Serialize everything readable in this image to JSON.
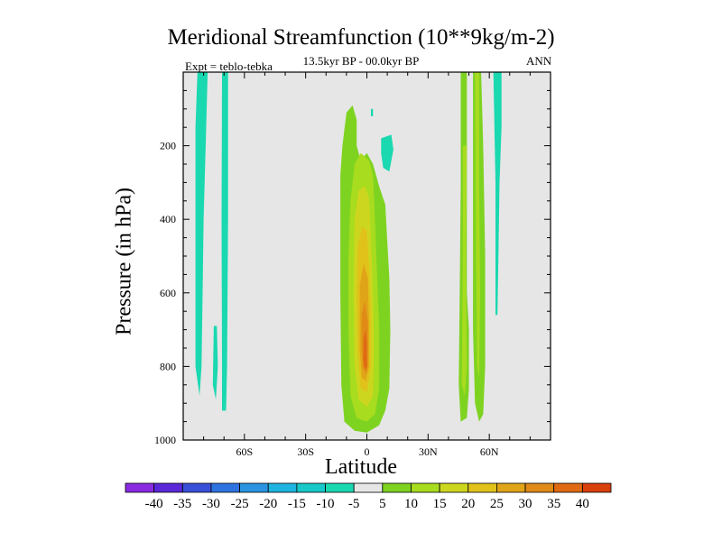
{
  "chart_data": {
    "type": "heatmap",
    "title": "Meridional Streamfunction (10**9kg/m-2)",
    "subtitle": "13.5kyr BP - 00.0kyr BP",
    "left_note": "Expt = teblo-tebka",
    "right_note": "ANN",
    "xlabel": "Latitude",
    "ylabel": "Pressure (in hPa)",
    "x_range": [
      -90,
      90
    ],
    "y_range": [
      0,
      1000
    ],
    "y_reversed": true,
    "x_ticks": [
      {
        "value": -60,
        "label": "60S"
      },
      {
        "value": -30,
        "label": "30S"
      },
      {
        "value": 0,
        "label": "0"
      },
      {
        "value": 30,
        "label": "30N"
      },
      {
        "value": 60,
        "label": "60N"
      }
    ],
    "y_ticks": [
      {
        "value": 200,
        "label": "200"
      },
      {
        "value": 400,
        "label": "400"
      },
      {
        "value": 600,
        "label": "600"
      },
      {
        "value": 800,
        "label": "800"
      },
      {
        "value": 1000,
        "label": "1000"
      }
    ],
    "colorbar": {
      "levels": [
        "-40",
        "-35",
        "-30",
        "-25",
        "-20",
        "-15",
        "-10",
        "-5",
        "5",
        "10",
        "15",
        "20",
        "25",
        "30",
        "35",
        "40"
      ],
      "colors": [
        "#8a2be2",
        "#5a28d8",
        "#3a4fd8",
        "#2e74e0",
        "#2a94e0",
        "#1fb5e0",
        "#18c8c8",
        "#1ad8b0",
        "#e6e6e6",
        "#7ed321",
        "#a8dc1e",
        "#cdd61e",
        "#e0c21a",
        "#e0a418",
        "#e08a18",
        "#e06a14",
        "#d8400c"
      ],
      "background_color": "#e6e6e6"
    },
    "regions": [
      {
        "level": "-10",
        "color": "#1ad8b0",
        "points": [
          [
            -83,
            0
          ],
          [
            -78,
            0
          ],
          [
            -79,
            200
          ],
          [
            -80,
            400
          ],
          [
            -80.5,
            600
          ],
          [
            -81,
            800
          ],
          [
            -82,
            880
          ],
          [
            -84,
            800
          ],
          [
            -84,
            400
          ],
          [
            -84,
            150
          ]
        ]
      },
      {
        "level": "-10",
        "color": "#1ad8b0",
        "points": [
          [
            -71,
            0
          ],
          [
            -68,
            0
          ],
          [
            -68,
            400
          ],
          [
            -68.5,
            800
          ],
          [
            -69,
            920
          ],
          [
            -71,
            920
          ],
          [
            -71,
            800
          ],
          [
            -71.2,
            400
          ]
        ]
      },
      {
        "level": "-10",
        "color": "#1ad8b0",
        "points": [
          [
            -75,
            690
          ],
          [
            -73.5,
            690
          ],
          [
            -73,
            800
          ],
          [
            -74,
            890
          ],
          [
            -75.5,
            850
          ]
        ]
      },
      {
        "level": "-10",
        "color": "#1ad8b0",
        "points": [
          [
            7,
            180
          ],
          [
            12,
            170
          ],
          [
            13,
            210
          ],
          [
            11,
            270
          ],
          [
            8,
            260
          ],
          [
            7,
            220
          ]
        ]
      },
      {
        "level": "-10",
        "color": "#1ad8b0",
        "points": [
          [
            2,
            100
          ],
          [
            3,
            100
          ],
          [
            3,
            120
          ],
          [
            2,
            120
          ]
        ]
      },
      {
        "level": "-10",
        "color": "#1ad8b0",
        "points": [
          [
            62,
            0
          ],
          [
            66,
            0
          ],
          [
            66,
            150
          ],
          [
            65,
            300
          ],
          [
            64.5,
            500
          ],
          [
            64,
            660
          ],
          [
            63,
            660
          ],
          [
            63,
            300
          ]
        ]
      },
      {
        "level": "5",
        "color": "#7ed321",
        "points": [
          [
            -12,
            200
          ],
          [
            -10,
            110
          ],
          [
            -7,
            90
          ],
          [
            -5,
            130
          ],
          [
            -5,
            200
          ],
          [
            -3,
            240
          ],
          [
            0,
            220
          ],
          [
            3,
            250
          ],
          [
            6,
            310
          ],
          [
            9,
            360
          ],
          [
            10,
            460
          ],
          [
            11,
            560
          ],
          [
            11.5,
            700
          ],
          [
            11,
            860
          ],
          [
            9,
            920
          ],
          [
            6,
            960
          ],
          [
            0,
            980
          ],
          [
            -6,
            975
          ],
          [
            -11,
            950
          ],
          [
            -12.5,
            850
          ],
          [
            -13,
            600
          ],
          [
            -13,
            400
          ],
          [
            -13,
            280
          ]
        ]
      },
      {
        "level": "5",
        "color": "#7ed321",
        "points": [
          [
            46,
            0
          ],
          [
            49,
            0
          ],
          [
            49,
            300
          ],
          [
            49,
            600
          ],
          [
            50,
            700
          ],
          [
            50,
            860
          ],
          [
            49,
            940
          ],
          [
            46,
            950
          ],
          [
            45,
            850
          ],
          [
            45.5,
            600
          ],
          [
            46,
            300
          ]
        ]
      },
      {
        "level": "5",
        "color": "#7ed321",
        "points": [
          [
            52,
            0
          ],
          [
            56,
            0
          ],
          [
            57,
            200
          ],
          [
            58,
            500
          ],
          [
            58,
            800
          ],
          [
            57,
            930
          ],
          [
            55,
            950
          ],
          [
            53,
            900
          ],
          [
            52,
            700
          ],
          [
            52,
            400
          ]
        ]
      },
      {
        "level": "10",
        "color": "#a8dc1e",
        "points": [
          [
            -8,
            350
          ],
          [
            -6,
            250
          ],
          [
            -3,
            220
          ],
          [
            1,
            240
          ],
          [
            3,
            280
          ],
          [
            4,
            400
          ],
          [
            5,
            550
          ],
          [
            6,
            700
          ],
          [
            6,
            860
          ],
          [
            4,
            930
          ],
          [
            0,
            950
          ],
          [
            -5,
            940
          ],
          [
            -8,
            880
          ],
          [
            -9,
            700
          ],
          [
            -9,
            500
          ]
        ]
      },
      {
        "level": "10",
        "color": "#a8dc1e",
        "points": [
          [
            47,
            200
          ],
          [
            49,
            200
          ],
          [
            48.5,
            500
          ],
          [
            49,
            800
          ],
          [
            48,
            880
          ],
          [
            46.5,
            850
          ],
          [
            47,
            500
          ]
        ]
      },
      {
        "level": "10",
        "color": "#a8dc1e",
        "points": [
          [
            53,
            0
          ],
          [
            55,
            0
          ],
          [
            55,
            300
          ],
          [
            55.5,
            600
          ],
          [
            55,
            830
          ],
          [
            54,
            800
          ],
          [
            53.5,
            500
          ]
        ]
      },
      {
        "level": "15",
        "color": "#cdd61e",
        "points": [
          [
            -6,
            400
          ],
          [
            -4,
            320
          ],
          [
            -1,
            310
          ],
          [
            1,
            340
          ],
          [
            2,
            450
          ],
          [
            3,
            600
          ],
          [
            3.5,
            750
          ],
          [
            3,
            880
          ],
          [
            0,
            910
          ],
          [
            -4,
            890
          ],
          [
            -6,
            800
          ],
          [
            -6.5,
            600
          ]
        ]
      },
      {
        "level": "20",
        "color": "#e0c21a",
        "points": [
          [
            -4.5,
            480
          ],
          [
            -2.5,
            420
          ],
          [
            0,
            430
          ],
          [
            1,
            520
          ],
          [
            2,
            650
          ],
          [
            2,
            800
          ],
          [
            0,
            870
          ],
          [
            -3,
            860
          ],
          [
            -4.5,
            760
          ],
          [
            -5,
            600
          ]
        ]
      },
      {
        "level": "25",
        "color": "#e0a418",
        "points": [
          [
            -3.5,
            580
          ],
          [
            -1.5,
            520
          ],
          [
            0.5,
            560
          ],
          [
            1,
            680
          ],
          [
            1,
            800
          ],
          [
            -0.5,
            840
          ],
          [
            -2.5,
            830
          ],
          [
            -3.5,
            750
          ]
        ]
      },
      {
        "level": "30",
        "color": "#e08a18",
        "points": [
          [
            -2.5,
            660
          ],
          [
            -1,
            620
          ],
          [
            0.5,
            680
          ],
          [
            0.5,
            800
          ],
          [
            -0.5,
            820
          ],
          [
            -2,
            800
          ],
          [
            -2.5,
            730
          ]
        ]
      },
      {
        "level": "35",
        "color": "#e06a14",
        "points": [
          [
            -1.5,
            720
          ],
          [
            -0.5,
            700
          ],
          [
            0,
            740
          ],
          [
            0,
            800
          ],
          [
            -1,
            810
          ],
          [
            -1.8,
            780
          ]
        ]
      }
    ]
  }
}
